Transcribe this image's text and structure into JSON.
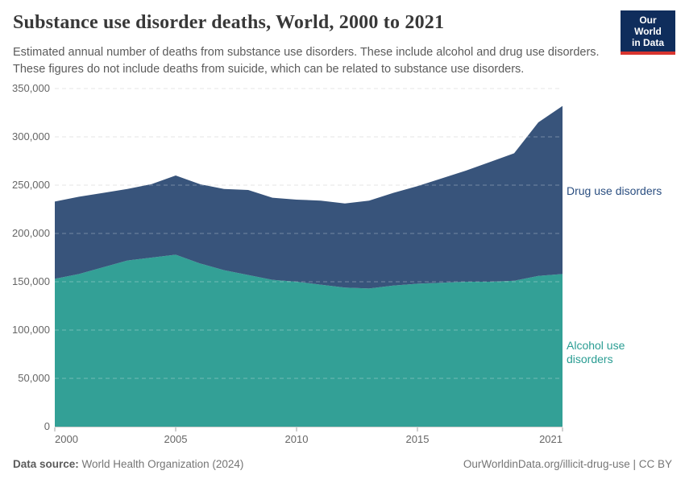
{
  "header": {
    "title": "Substance use disorder deaths, World, 2000 to 2021",
    "subtitle_lines": [
      "Estimated annual number of deaths from substance use disorders. These include alcohol and drug use disorders.",
      "These figures do not include deaths from suicide, which can be related to substance use disorders."
    ],
    "logo": {
      "line1": "Our World",
      "line2": "in Data"
    }
  },
  "chart_data": {
    "type": "area",
    "stacked": true,
    "title": "Substance use disorder deaths, World, 2000 to 2021",
    "xlabel": "",
    "ylabel": "",
    "x": [
      2000,
      2001,
      2002,
      2003,
      2004,
      2005,
      2006,
      2007,
      2008,
      2009,
      2010,
      2011,
      2012,
      2013,
      2014,
      2015,
      2016,
      2017,
      2018,
      2019,
      2020,
      2021
    ],
    "series": [
      {
        "name": "Alcohol use disorders",
        "color": "#33a096",
        "label_color": "#2a9d93",
        "values": [
          153000,
          158000,
          165000,
          172000,
          175000,
          178000,
          169000,
          162000,
          157000,
          152000,
          150000,
          147000,
          144000,
          143000,
          146000,
          148000,
          149000,
          150000,
          150000,
          151000,
          156000,
          158000
        ]
      },
      {
        "name": "Drug use disorders",
        "color": "#38547b",
        "label_color": "#2a4e80",
        "values": [
          80000,
          80000,
          77000,
          74000,
          76000,
          82000,
          82000,
          84000,
          88000,
          85000,
          85000,
          87000,
          87000,
          91000,
          96000,
          101000,
          108000,
          115000,
          124000,
          132000,
          159000,
          174000
        ]
      }
    ],
    "stacked_totals": [
      233000,
      238000,
      242000,
      246000,
      251000,
      260000,
      251000,
      246000,
      245000,
      237000,
      235000,
      234000,
      231000,
      234000,
      242000,
      249000,
      257000,
      265000,
      274000,
      283000,
      315000,
      332000
    ],
    "ylim": [
      0,
      350000
    ],
    "yticks": [
      0,
      50000,
      100000,
      150000,
      200000,
      250000,
      300000,
      350000
    ],
    "xticks": [
      2000,
      2005,
      2010,
      2015,
      2021
    ],
    "grid": "dashed-horizontal",
    "legend_position": "right-of-plot-inline-labels"
  },
  "footer": {
    "datasource_label": "Data source:",
    "datasource_value": " World Health Organization (2024)",
    "url": "OurWorldinData.org/illicit-drug-use",
    "license_suffix": " | CC BY"
  }
}
